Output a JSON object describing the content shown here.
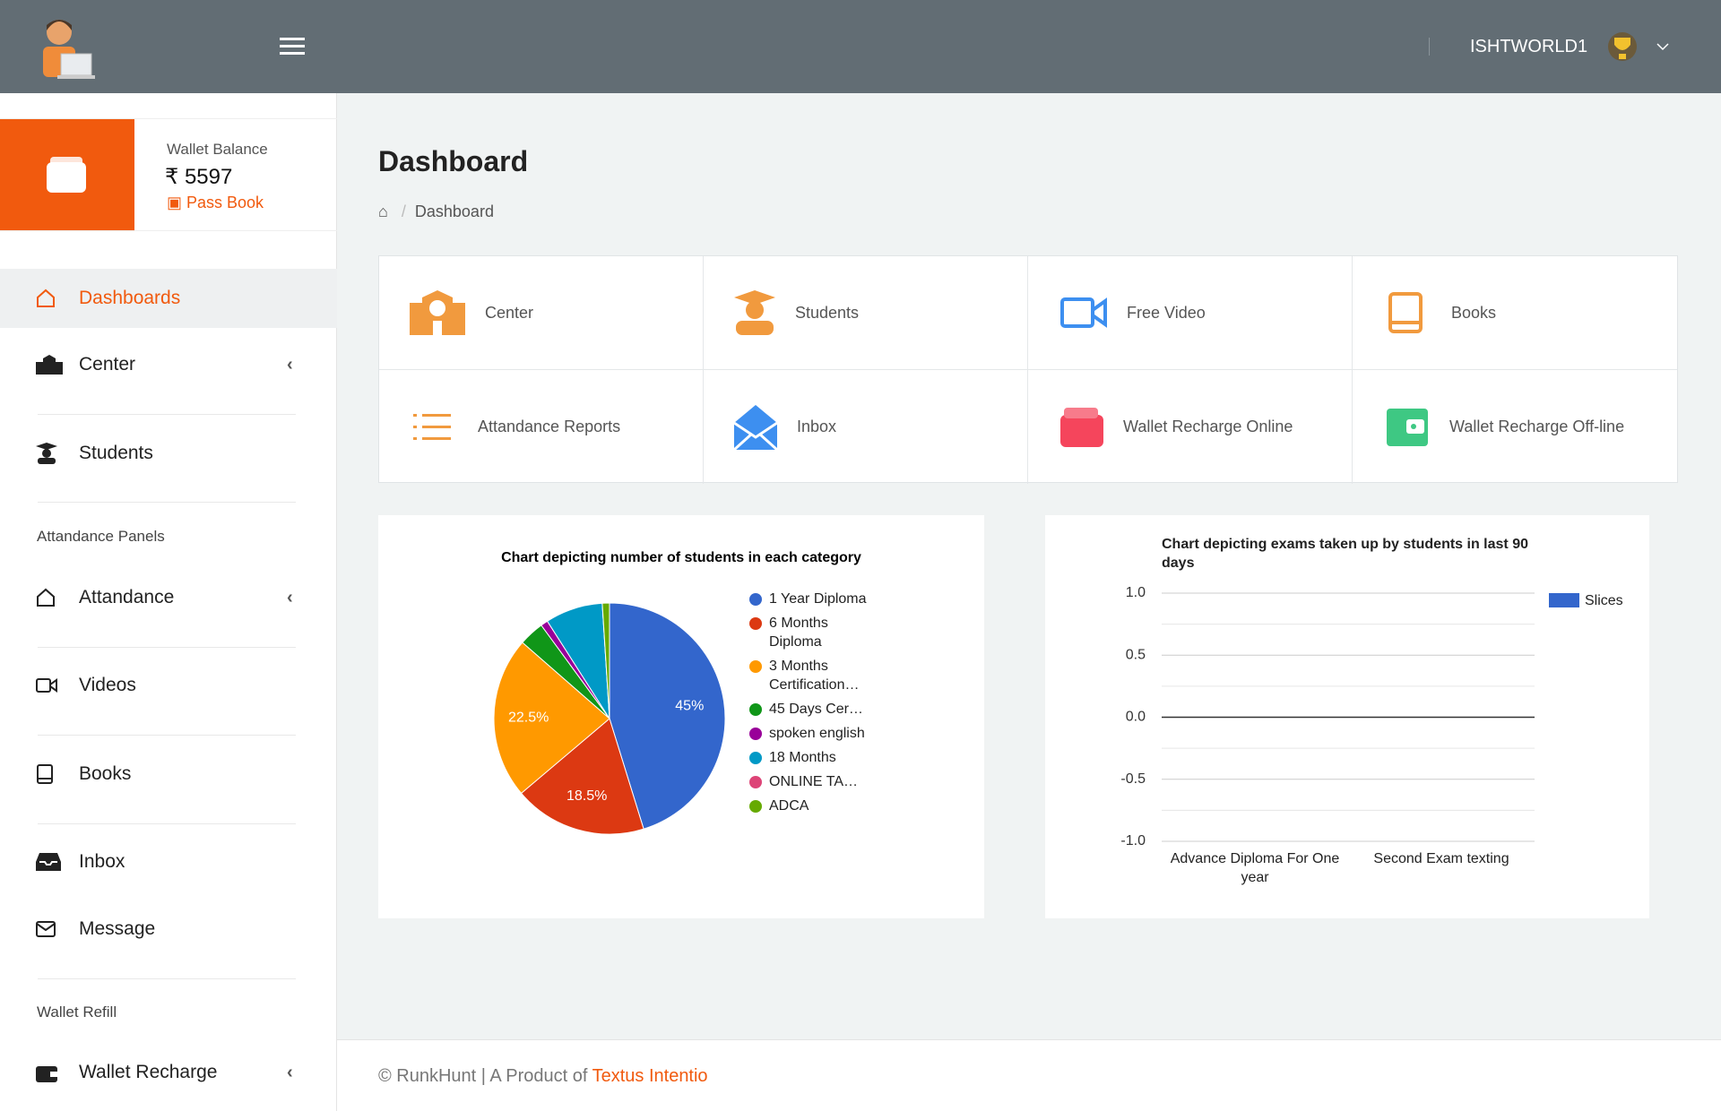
{
  "header": {
    "username": "ISHTWORLD1"
  },
  "wallet": {
    "label": "Wallet Balance",
    "currency": "₹",
    "amount": "5597",
    "passbook": "Pass Book"
  },
  "sidebar": {
    "items": [
      "Dashboards",
      "Center",
      "Students",
      "Attandance",
      "Videos",
      "Books",
      "Inbox",
      "Message",
      "Wallet Recharge"
    ],
    "sections": [
      "Attandance Panels",
      "Wallet Refill"
    ]
  },
  "page": {
    "title": "Dashboard",
    "breadcrumb": "Dashboard"
  },
  "tiles": [
    "Center",
    "Students",
    "Free Video",
    "Books",
    "Attandance Reports",
    "Inbox",
    "Wallet Recharge Online",
    "Wallet Recharge Off-line"
  ],
  "chart_data": [
    {
      "type": "pie",
      "title": "Chart depicting number of students in each category",
      "categories": [
        "1 Year Diploma",
        "6 Months Diploma",
        "3 Months Certification…",
        "45 Days Cer…",
        "spoken english",
        "18 Months",
        "ONLINE TA…",
        "ADCA"
      ],
      "values": [
        45,
        18.5,
        22.5,
        3.5,
        1,
        8,
        0,
        1
      ],
      "value_labels": [
        "45%",
        "18.5%",
        "22.5%",
        null,
        null,
        null,
        null,
        null
      ],
      "colors": [
        "#3366cc",
        "#dc3912",
        "#ff9900",
        "#109618",
        "#990099",
        "#0099c6",
        "#dd4477",
        "#66aa00"
      ]
    },
    {
      "type": "bar",
      "title": "Chart depicting exams taken up by students in last 90 days",
      "categories": [
        "Advance Diploma For One year",
        "Second Exam texting"
      ],
      "series": [
        {
          "name": "Slices",
          "color": "#3366cc",
          "values": [
            0,
            0
          ]
        }
      ],
      "ylim": [
        -1,
        1
      ],
      "yticks": [
        {
          "value": -1,
          "label": "-1.0"
        },
        {
          "value": -0.5,
          "label": "-0.5"
        },
        {
          "value": 0,
          "label": "0.0"
        },
        {
          "value": 0.5,
          "label": "0.5"
        },
        {
          "value": 1,
          "label": "1.0"
        }
      ],
      "grid": true
    }
  ],
  "footer": {
    "text": "© RunkHunt | A Product of",
    "link": "Textus Intentio"
  }
}
